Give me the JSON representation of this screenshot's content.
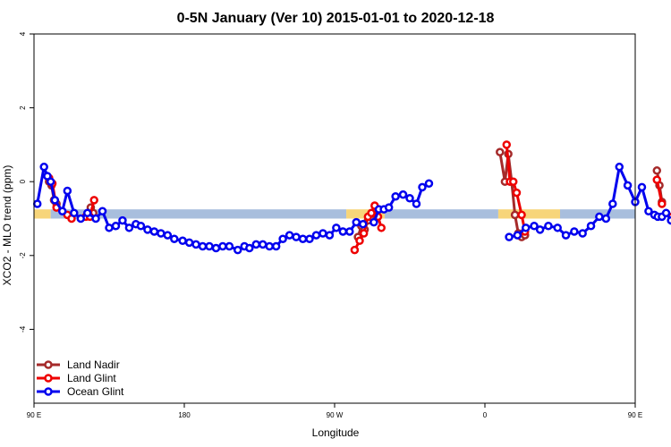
{
  "chart_data": {
    "type": "line",
    "title": "0-5N January (Ver 10)   2015-01-01 to 2020-12-18",
    "xlabel": "Longitude",
    "ylabel": "XCO2 - MLO trend (ppm)",
    "xlim": [
      90,
      450
    ],
    "ylim": [
      -6,
      4
    ],
    "x_ticks": [
      {
        "value": 90,
        "label": "90 E"
      },
      {
        "value": 180,
        "label": "180"
      },
      {
        "value": 270,
        "label": "90 W"
      },
      {
        "value": 360,
        "label": "0"
      },
      {
        "value": 450,
        "label": "90 E"
      },
      {
        "value": 540,
        "label": "180"
      }
    ],
    "y_ticks": [
      {
        "value": 4,
        "label": "4"
      },
      {
        "value": 2,
        "label": "2"
      },
      {
        "value": 0,
        "label": "0"
      },
      {
        "value": -2,
        "label": "-2"
      },
      {
        "value": -4,
        "label": "-4"
      }
    ],
    "surface_band": {
      "y_range": [
        -1.0,
        -0.75
      ],
      "segments": [
        {
          "x": [
            90,
            100
          ],
          "type": "land"
        },
        {
          "x": [
            100,
            277
          ],
          "type": "ocean"
        },
        {
          "x": [
            277,
            300
          ],
          "type": "land"
        },
        {
          "x": [
            300,
            368
          ],
          "type": "ocean"
        },
        {
          "x": [
            368,
            405
          ],
          "type": "land"
        },
        {
          "x": [
            405,
            460
          ],
          "type": "ocean"
        },
        {
          "x": [
            460,
            465
          ],
          "type": "land"
        },
        {
          "x": [
            465,
            540
          ],
          "type": "ocean"
        }
      ]
    },
    "band_colors": {
      "ocean": "#a8bedd",
      "land": "#f7d57a"
    },
    "series": [
      {
        "name": "Land Nadir",
        "color": "#a52a2a",
        "segments": [
          {
            "x": [
              99,
              100.5,
              102,
              103.5
            ],
            "y": [
              0.0,
              -0.1,
              -0.5,
              -0.6
            ]
          },
          {
            "x": [
              124,
              125.5
            ],
            "y": [
              -0.7,
              -0.85
            ]
          },
          {
            "x": [
              284,
              286,
              288,
              290
            ],
            "y": [
              -1.5,
              -1.2,
              -1.3,
              -1.05
            ]
          },
          {
            "x": [
              293,
              295
            ],
            "y": [
              -1.0,
              -0.95
            ]
          },
          {
            "x": [
              369,
              372,
              374,
              376,
              378,
              380
            ],
            "y": [
              0.8,
              0.0,
              0.75,
              0.0,
              -0.9,
              -1.4
            ]
          },
          {
            "x": [
              382,
              384
            ],
            "y": [
              -1.5,
              -1.45
            ]
          },
          {
            "x": [
              463,
              464.5,
              466
            ],
            "y": [
              0.3,
              -0.1,
              -0.55
            ]
          },
          {
            "x": [
              476,
              478
            ],
            "y": [
              -0.7,
              -0.85
            ]
          }
        ]
      },
      {
        "name": "Land Glint",
        "color": "#ee0000",
        "segments": [
          {
            "x": [
              99,
              101,
              103.5
            ],
            "y": [
              0.1,
              -0.05,
              -0.7
            ]
          },
          {
            "x": [
              110,
              112.5
            ],
            "y": [
              -0.9,
              -1.0
            ]
          },
          {
            "x": [
              121,
              123.5,
              126
            ],
            "y": [
              -0.95,
              -0.95,
              -0.5
            ]
          },
          {
            "x": [
              282,
              285,
              287.5,
              290,
              292,
              294,
              296,
              298
            ],
            "y": [
              -1.85,
              -1.6,
              -1.4,
              -0.95,
              -0.85,
              -0.65,
              -0.95,
              -1.25
            ]
          },
          {
            "x": [
              373,
              375,
              377,
              379,
              382,
              384
            ],
            "y": [
              1.0,
              0.0,
              0.0,
              -0.3,
              -0.9,
              -1.35
            ]
          },
          {
            "x": [
              463,
              466
            ],
            "y": [
              0.05,
              -0.6
            ]
          },
          {
            "x": [
              472,
              474.5,
              477,
              479.5
            ],
            "y": [
              -0.95,
              -1.0,
              -0.85,
              -0.5
            ]
          }
        ]
      },
      {
        "name": "Ocean Glint",
        "color": "#0000ee",
        "segments": [
          {
            "x": [
              92,
              96,
              98,
              100,
              102.5,
              107,
              110,
              114,
              118,
              122,
              127,
              131,
              135,
              139,
              143,
              147,
              151,
              154,
              158,
              162,
              166,
              170,
              174,
              179,
              183,
              187,
              191,
              195,
              199,
              203,
              207,
              212,
              216,
              219,
              223,
              227,
              231,
              235,
              239,
              243,
              247,
              251,
              255,
              259,
              263,
              267,
              271,
              275,
              279,
              283,
              287
            ],
            "y": [
              -0.6,
              0.4,
              0.15,
              0.0,
              -0.5,
              -0.8,
              -0.25,
              -0.85,
              -1.0,
              -0.85,
              -1.0,
              -0.8,
              -1.25,
              -1.2,
              -1.05,
              -1.25,
              -1.15,
              -1.2,
              -1.3,
              -1.35,
              -1.4,
              -1.45,
              -1.55,
              -1.6,
              -1.65,
              -1.7,
              -1.75,
              -1.75,
              -1.8,
              -1.75,
              -1.75,
              -1.85,
              -1.75,
              -1.8,
              -1.7,
              -1.7,
              -1.75,
              -1.75,
              -1.55,
              -1.45,
              -1.5,
              -1.55,
              -1.55,
              -1.45,
              -1.4,
              -1.45,
              -1.25,
              -1.35,
              -1.35,
              -1.1,
              -1.15
            ]
          },
          {
            "x": [
              293.5,
              296.5,
              299.5,
              302.5,
              306.5,
              311,
              315,
              319,
              322.5,
              326.5
            ],
            "y": [
              -1.1,
              -0.75,
              -0.75,
              -0.7,
              -0.4,
              -0.35,
              -0.45,
              -0.6,
              -0.15,
              -0.05
            ]
          },
          {
            "x": [
              374.5,
              379.5,
              384.5,
              389.5,
              393,
              398,
              403.5,
              408.5,
              413.5,
              418.5,
              423.5,
              428.5,
              432.5,
              436.5,
              440.5,
              445.5,
              450,
              454,
              458,
              461.5,
              463.5,
              466,
              468.5,
              471.5,
              476.5,
              480,
              484.5,
              488.5,
              492.5
            ],
            "y": [
              -1.5,
              -1.45,
              -1.25,
              -1.2,
              -1.3,
              -1.2,
              -1.25,
              -1.45,
              -1.35,
              -1.4,
              -1.2,
              -0.95,
              -1.0,
              -0.6,
              0.4,
              -0.1,
              -0.55,
              -0.15,
              -0.8,
              -0.9,
              -0.95,
              -0.95,
              -0.85,
              -1.05,
              -1.3,
              -1.25,
              -1.2,
              -1.15,
              -1.45
            ]
          },
          {
            "x": [
              496,
              500
            ],
            "y": [
              -1.3,
              -1.35
            ]
          }
        ]
      }
    ],
    "legend": {
      "position": "bottom-left"
    }
  }
}
